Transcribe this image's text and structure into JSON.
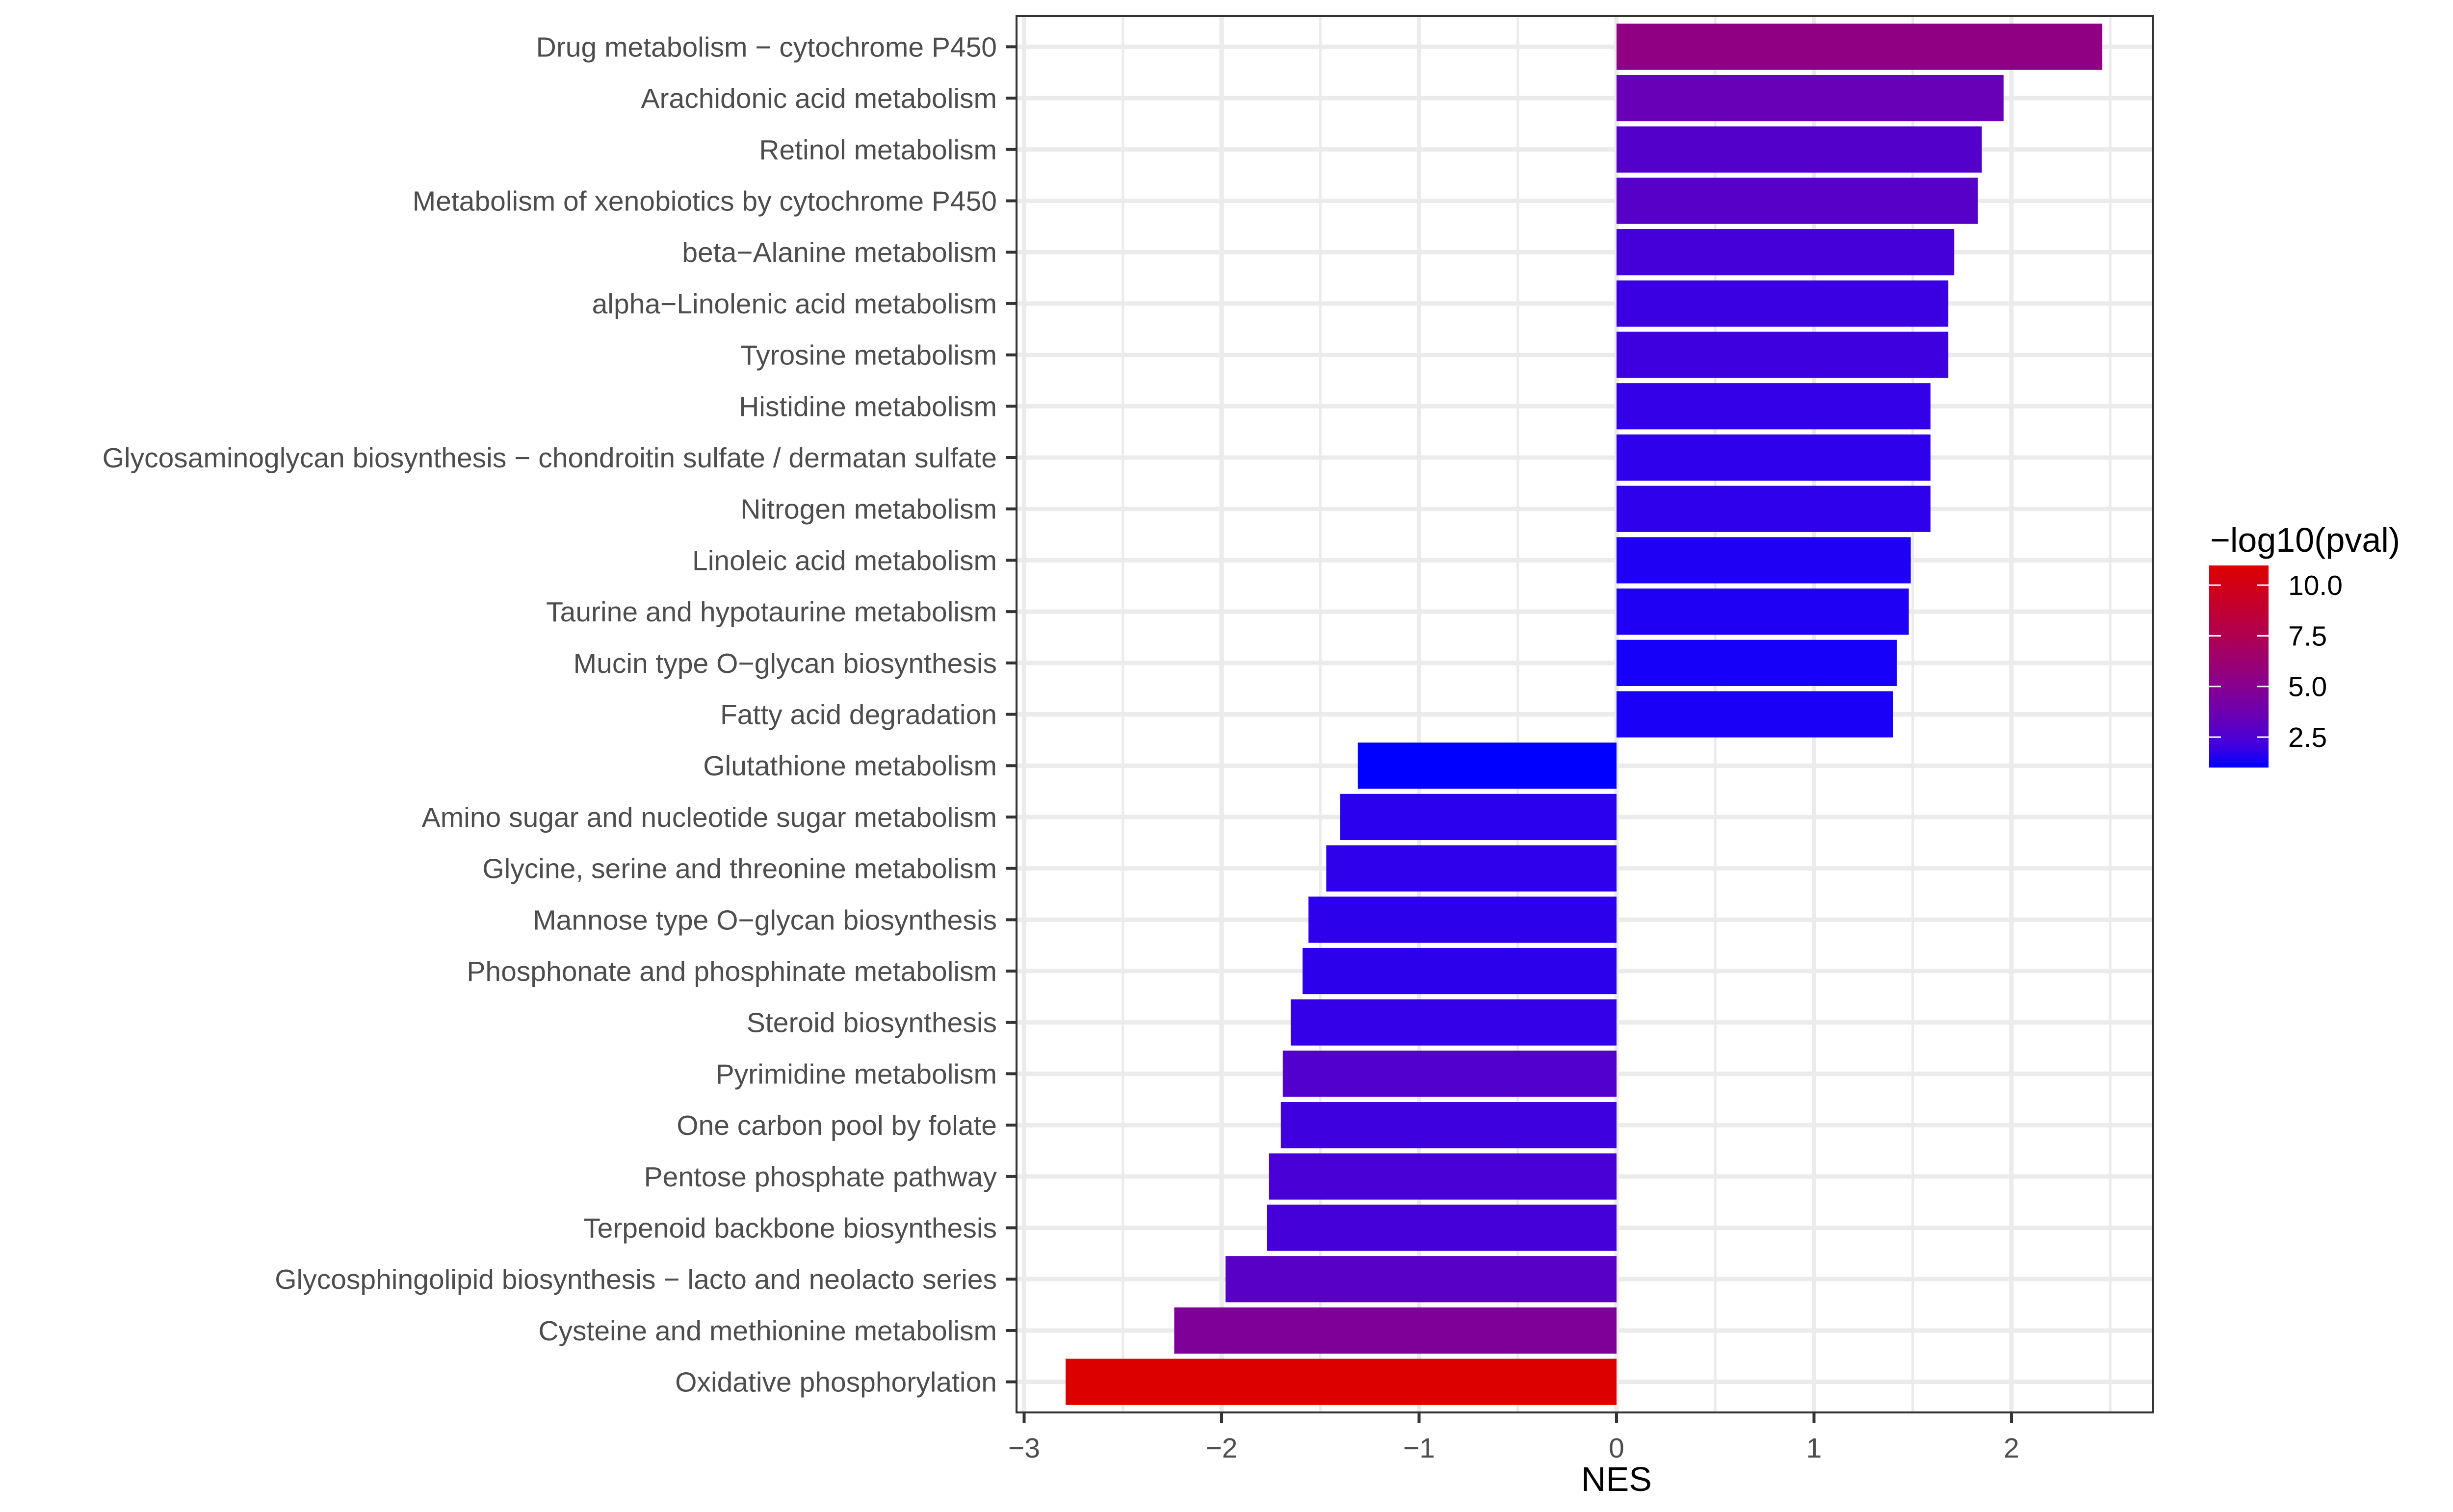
{
  "chart_data": {
    "type": "bar",
    "orientation": "horizontal",
    "title": "",
    "xlabel": "NES",
    "ylabel": "",
    "xlim": [
      -3.02,
      2.75
    ],
    "x_ticks": [
      -3,
      -2,
      -1,
      0,
      1,
      2
    ],
    "x_tick_labels": [
      "−3",
      "−2",
      "−1",
      "0",
      "1",
      "2"
    ],
    "grid": true,
    "legend": {
      "title": "−log10(pval)",
      "type": "continuous-gradient",
      "position": "right",
      "range": [
        1.0,
        10.97
      ],
      "ticks": [
        10.0,
        7.5,
        5.0,
        2.5
      ],
      "tick_labels": [
        "10.0",
        "7.5",
        "5.0",
        "2.5"
      ],
      "low_color": "#0000FF",
      "high_color": "#DD0000"
    },
    "categories": [
      "Drug metabolism − cytochrome P450",
      "Arachidonic acid metabolism",
      "Retinol metabolism",
      "Metabolism of xenobiotics by cytochrome P450",
      "beta−Alanine metabolism",
      "alpha−Linolenic acid metabolism",
      "Tyrosine metabolism",
      "Histidine metabolism",
      "Glycosaminoglycan biosynthesis − chondroitin sulfate / dermatan sulfate",
      "Nitrogen metabolism",
      "Linoleic acid metabolism",
      "Taurine and hypotaurine metabolism",
      "Mucin type O−glycan biosynthesis",
      "Fatty acid degradation",
      "Glutathione metabolism",
      "Amino sugar and nucleotide sugar metabolism",
      "Glycine, serine and threonine metabolism",
      "Mannose type O−glycan biosynthesis",
      "Phosphonate and phosphinate metabolism",
      "Steroid biosynthesis",
      "Pyrimidine metabolism",
      "One carbon pool by folate",
      "Pentose phosphate pathway",
      "Terpenoid backbone biosynthesis",
      "Glycosphingolipid biosynthesis − lacto and neolacto series",
      "Cysteine and methionine metabolism",
      "Oxidative phosphorylation"
    ],
    "series": [
      {
        "name": "NES",
        "values": [
          2.46,
          1.96,
          1.85,
          1.83,
          1.71,
          1.68,
          1.68,
          1.59,
          1.59,
          1.59,
          1.49,
          1.48,
          1.42,
          1.4,
          -1.31,
          -1.4,
          -1.47,
          -1.56,
          -1.59,
          -1.65,
          -1.69,
          -1.7,
          -1.76,
          -1.77,
          -1.98,
          -2.24,
          -2.79
        ]
      },
      {
        "name": "−log10(pval)",
        "values": [
          5.5,
          3.5,
          2.7,
          2.8,
          2.2,
          1.9,
          2.0,
          1.7,
          1.6,
          1.6,
          1.3,
          1.3,
          1.15,
          1.2,
          1.0,
          1.5,
          1.6,
          1.55,
          1.55,
          1.7,
          2.6,
          2.0,
          2.3,
          2.2,
          2.9,
          4.6,
          10.97
        ]
      }
    ]
  }
}
